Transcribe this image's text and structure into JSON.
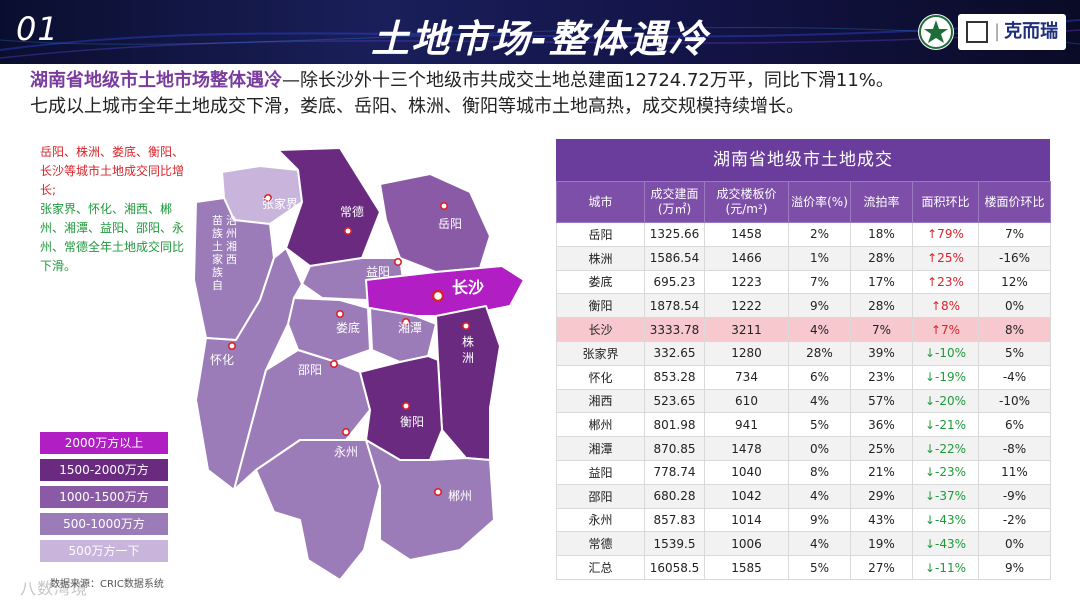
{
  "header": {
    "number": "01",
    "title": "土地市场-整体遇冷",
    "logo_text": "克而瑞"
  },
  "intro": {
    "highlight": "湖南省地级市土地市场整体遇冷",
    "line1_rest": "—除长沙外十三个地级市共成交土地总建面12724.72万平，同比下滑11%。",
    "line2": "七成以上城市全年土地成交下滑，娄底、岳阳、株洲、衡阳等城市土地高热，成交规模持续增长。"
  },
  "notes": {
    "red": "岳阳、株洲、娄底、衡阳、长沙等城市土地成交同比增长;",
    "green": "张家界、怀化、湘西、郴州、湘潭、益阳、邵阳、永州、常德全年土地成交同比下滑。"
  },
  "map": {
    "cities": {
      "zhangjiajie": "张家界",
      "changde": "常德",
      "yueyang": "岳阳",
      "xiangxi": "苗族土家族自治州湘西",
      "yiyang": "益阳",
      "changsha": "长沙",
      "loudi": "娄底",
      "xiangtan": "湘潭",
      "zhuzhou": "株洲",
      "huaihua": "怀化",
      "shaoyang": "邵阳",
      "hengyang": "衡阳",
      "yongzhou": "永州",
      "chenzhou": "郴州"
    }
  },
  "legend": [
    {
      "label": "2000万方以上",
      "color": "#b01ec4"
    },
    {
      "label": "1500-2000万方",
      "color": "#6a2a80"
    },
    {
      "label": "1000-1500万方",
      "color": "#8a5aa6"
    },
    {
      "label": "500-1000万方",
      "color": "#9b7bb8"
    },
    {
      "label": "500万方一下",
      "color": "#c9b4dc"
    }
  ],
  "source": "数据来源：CRIC数据系统",
  "watermark": "八数湾境",
  "table": {
    "title": "湖南省地级市土地成交",
    "headers": [
      "城市",
      "成交建面(万㎡)",
      "成交楼板价(元/m²)",
      "溢价率(%)",
      "流拍率",
      "面积环比",
      "楼面价环比"
    ],
    "rows": [
      {
        "city": "岳阳",
        "area": "1325.66",
        "price": "1458",
        "premium": "2%",
        "fail": "18%",
        "area_chg": "↑79%",
        "dir": "up",
        "price_chg": "7%"
      },
      {
        "city": "株洲",
        "area": "1586.54",
        "price": "1466",
        "premium": "1%",
        "fail": "28%",
        "area_chg": "↑25%",
        "dir": "up",
        "price_chg": "-16%"
      },
      {
        "city": "娄底",
        "area": "695.23",
        "price": "1223",
        "premium": "7%",
        "fail": "17%",
        "area_chg": "↑23%",
        "dir": "up",
        "price_chg": "12%"
      },
      {
        "city": "衡阳",
        "area": "1878.54",
        "price": "1222",
        "premium": "9%",
        "fail": "28%",
        "area_chg": "↑8%",
        "dir": "up",
        "price_chg": "0%"
      },
      {
        "city": "长沙",
        "area": "3333.78",
        "price": "3211",
        "premium": "4%",
        "fail": "7%",
        "area_chg": "↑7%",
        "dir": "up",
        "price_chg": "8%"
      },
      {
        "city": "张家界",
        "area": "332.65",
        "price": "1280",
        "premium": "28%",
        "fail": "39%",
        "area_chg": "↓-10%",
        "dir": "down",
        "price_chg": "5%"
      },
      {
        "city": "怀化",
        "area": "853.28",
        "price": "734",
        "premium": "6%",
        "fail": "23%",
        "area_chg": "↓-19%",
        "dir": "down",
        "price_chg": "-4%"
      },
      {
        "city": "湘西",
        "area": "523.65",
        "price": "610",
        "premium": "4%",
        "fail": "57%",
        "area_chg": "↓-20%",
        "dir": "down",
        "price_chg": "-10%"
      },
      {
        "city": "郴州",
        "area": "801.98",
        "price": "941",
        "premium": "5%",
        "fail": "36%",
        "area_chg": "↓-21%",
        "dir": "down",
        "price_chg": "6%"
      },
      {
        "city": "湘潭",
        "area": "870.85",
        "price": "1478",
        "premium": "0%",
        "fail": "25%",
        "area_chg": "↓-22%",
        "dir": "down",
        "price_chg": "-8%"
      },
      {
        "city": "益阳",
        "area": "778.74",
        "price": "1040",
        "premium": "8%",
        "fail": "21%",
        "area_chg": "↓-23%",
        "dir": "down",
        "price_chg": "11%"
      },
      {
        "city": "邵阳",
        "area": "680.28",
        "price": "1042",
        "premium": "4%",
        "fail": "29%",
        "area_chg": "↓-37%",
        "dir": "down",
        "price_chg": "-9%"
      },
      {
        "city": "永州",
        "area": "857.83",
        "price": "1014",
        "premium": "9%",
        "fail": "43%",
        "area_chg": "↓-43%",
        "dir": "down",
        "price_chg": "-2%"
      },
      {
        "city": "常德",
        "area": "1539.5",
        "price": "1006",
        "premium": "4%",
        "fail": "19%",
        "area_chg": "↓-43%",
        "dir": "down",
        "price_chg": "0%"
      },
      {
        "city": "汇总",
        "area": "16058.5",
        "price": "1585",
        "premium": "5%",
        "fail": "27%",
        "area_chg": "↓-11%",
        "dir": "down",
        "price_chg": "9%"
      }
    ]
  }
}
